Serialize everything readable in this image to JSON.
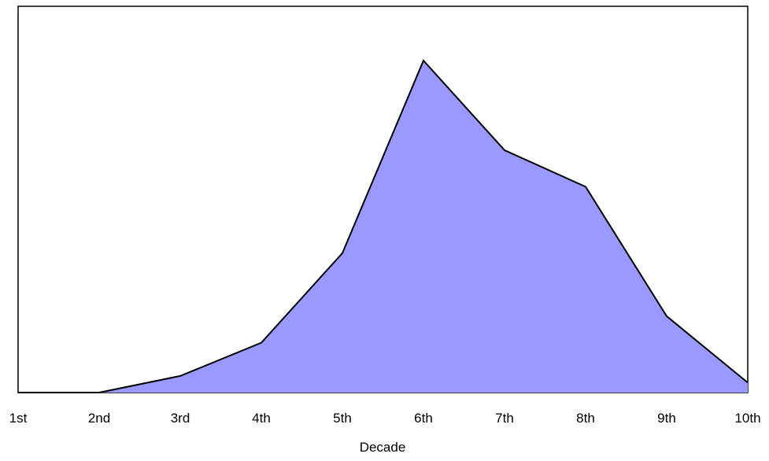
{
  "chart_data": {
    "type": "area",
    "title": "",
    "xlabel": "Decade",
    "ylabel": "",
    "categories": [
      "1st",
      "2nd",
      "3rd",
      "4th",
      "5th",
      "6th",
      "7th",
      "8th",
      "9th",
      "10th"
    ],
    "values": [
      0,
      0,
      5,
      15,
      42,
      100,
      73,
      62,
      23,
      3
    ],
    "ylim": [
      0,
      100
    ],
    "grid": false,
    "legend": "none",
    "colors": {
      "fill": "#9999ff",
      "line": "#000000",
      "frame": "#000000",
      "background": "#ffffff"
    }
  }
}
